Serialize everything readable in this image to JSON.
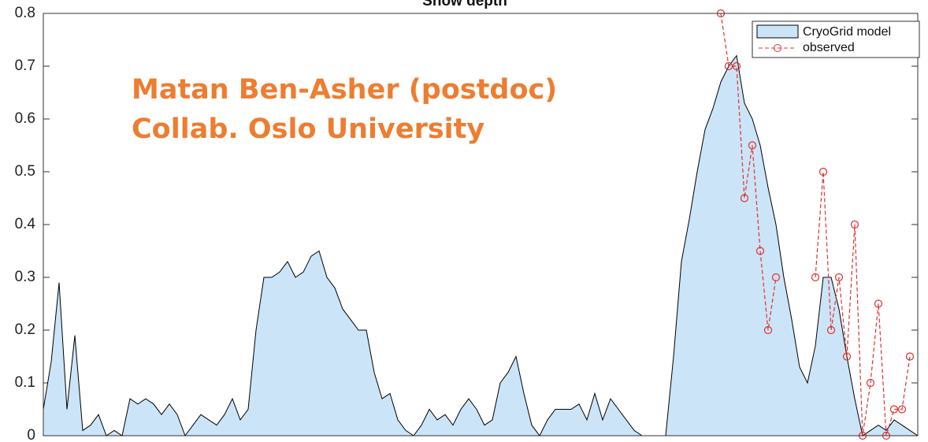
{
  "chart_data": {
    "type": "area",
    "title": "Snow depth",
    "annotations": [
      "Matan Ben-Asher (postdoc)",
      "Collab. Oslo University"
    ],
    "categories": [
      null,
      null,
      null,
      null,
      null,
      null,
      null,
      null,
      null,
      null,
      null,
      null,
      null,
      null,
      null,
      null,
      null,
      null,
      null,
      null,
      null,
      null,
      null,
      null,
      null,
      null,
      null,
      null,
      null,
      null,
      null,
      null,
      null,
      null,
      null,
      null,
      null,
      null,
      null,
      null,
      null,
      null,
      null,
      null,
      null,
      null,
      null,
      null,
      null,
      null,
      null,
      null,
      null,
      null,
      null,
      null,
      null,
      null,
      null,
      null,
      null,
      null,
      null,
      null,
      null,
      null,
      null,
      null,
      null,
      null,
      null,
      null,
      null,
      null,
      null,
      null,
      null,
      null,
      null,
      null,
      null,
      null,
      null,
      null,
      null,
      null,
      null,
      null,
      null,
      null,
      null,
      null,
      null,
      null,
      null,
      null,
      null,
      null,
      null,
      null,
      null,
      null,
      null,
      null,
      null,
      null,
      null,
      null,
      null,
      null,
      null,
      null
    ],
    "series": [
      {
        "name": "CryoGrid model",
        "color": "#cce4f7",
        "edge_color": "#000000",
        "values": [
          0.05,
          0.14,
          0.29,
          0.05,
          0.19,
          0.01,
          0.02,
          0.04,
          0,
          0.01,
          0,
          0.07,
          0.06,
          0.07,
          0.06,
          0.04,
          0.06,
          0.04,
          0,
          0.02,
          0.04,
          0.03,
          0.02,
          0.04,
          0.07,
          0.03,
          0.05,
          0.2,
          0.3,
          0.3,
          0.31,
          0.33,
          0.3,
          0.31,
          0.34,
          0.35,
          0.3,
          0.28,
          0.24,
          0.22,
          0.2,
          0.2,
          0.12,
          0.07,
          0.08,
          0.03,
          0.01,
          0,
          0.02,
          0.05,
          0.03,
          0.04,
          0.02,
          0.05,
          0.07,
          0.05,
          0.02,
          0.03,
          0.1,
          0.12,
          0.15,
          0.08,
          0.02,
          0,
          0.03,
          0.05,
          0.05,
          0.05,
          0.06,
          0.03,
          0.08,
          0.03,
          0.07,
          0.05,
          0.03,
          0.01,
          0,
          0,
          0,
          0,
          0.15,
          0.33,
          0.41,
          0.5,
          0.58,
          0.62,
          0.67,
          0.7,
          0.72,
          0.63,
          0.6,
          0.55,
          0.47,
          0.4,
          0.3,
          0.22,
          0.13,
          0.1,
          0.17,
          0.3,
          0.3,
          0.24,
          0.15,
          0.07,
          0,
          0.01,
          0.02,
          0.01,
          0.03,
          0.02,
          0.01,
          0
        ]
      },
      {
        "name": "observed",
        "color": "#e03030",
        "values": [
          null,
          null,
          null,
          null,
          null,
          null,
          null,
          null,
          null,
          null,
          null,
          null,
          null,
          null,
          null,
          null,
          null,
          null,
          null,
          null,
          null,
          null,
          null,
          null,
          null,
          null,
          null,
          null,
          null,
          null,
          null,
          null,
          null,
          null,
          null,
          null,
          null,
          null,
          null,
          null,
          null,
          null,
          null,
          null,
          null,
          null,
          null,
          null,
          null,
          null,
          null,
          null,
          null,
          null,
          null,
          null,
          null,
          null,
          null,
          null,
          null,
          null,
          null,
          null,
          null,
          null,
          null,
          null,
          null,
          null,
          null,
          null,
          null,
          null,
          null,
          null,
          null,
          null,
          null,
          null,
          null,
          null,
          null,
          null,
          null,
          null,
          0.8,
          0.7,
          0.7,
          0.45,
          0.55,
          0.35,
          0.2,
          0.3,
          null,
          null,
          null,
          null,
          0.3,
          0.5,
          0.2,
          0.3,
          0.15,
          0.4,
          0,
          0.1,
          0.25,
          0,
          0.05,
          0.05,
          0.15,
          null
        ]
      }
    ],
    "ylim": [
      0,
      0.8
    ],
    "yticks": [
      0,
      0.1,
      0.2,
      0.3,
      0.4,
      0.5,
      0.6,
      0.7,
      0.8
    ],
    "legend": "upper right"
  }
}
